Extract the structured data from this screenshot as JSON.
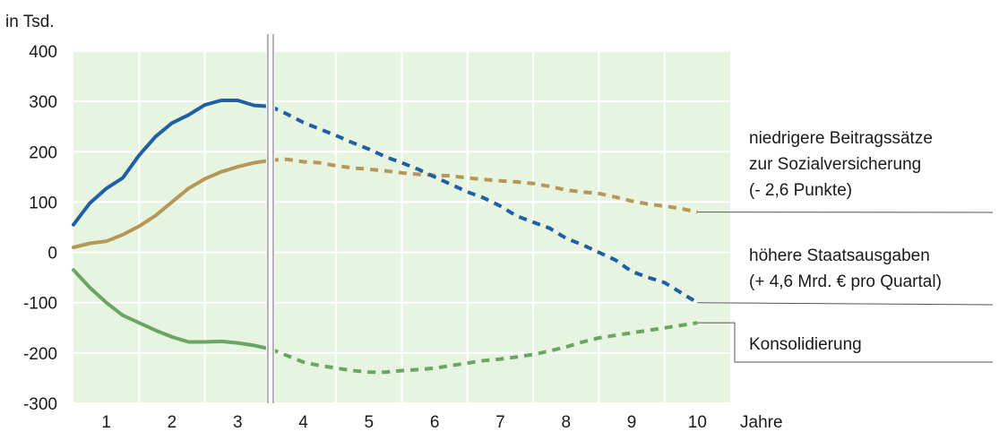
{
  "chart_data": {
    "type": "line",
    "unit_label": "in Tsd.",
    "xlabel": "Jahre",
    "ylim": [
      -300,
      400
    ],
    "xlim": [
      0.5,
      10.5
    ],
    "yticks": [
      "400",
      "300",
      "200",
      "100",
      "0",
      "-100",
      "-200",
      "-300"
    ],
    "ytick_values": [
      400,
      300,
      200,
      100,
      0,
      -100,
      -200,
      -300
    ],
    "xticks": [
      "1",
      "2",
      "3",
      "4",
      "5",
      "6",
      "7",
      "8",
      "9",
      "10"
    ],
    "xtick_values": [
      1,
      2,
      3,
      4,
      5,
      6,
      7,
      8,
      9,
      10
    ],
    "grid": true,
    "background_color": "#e6f4e0",
    "divider_x": 3.5,
    "solid_until": 3.5,
    "series": [
      {
        "name": "niedrigere Beitragssätze zur Sozialversicherung (- 2,6 Punkte)",
        "label_lines": [
          "niedrigere Beitragssätze",
          "zur Sozialversicherung",
          "(- 2,6 Punkte)"
        ],
        "color": "#b5975a",
        "x": [
          0.5,
          0.75,
          1.0,
          1.25,
          1.5,
          1.75,
          2.0,
          2.25,
          2.5,
          2.75,
          3.0,
          3.25,
          3.5,
          3.75,
          4.0,
          4.25,
          4.5,
          4.75,
          5.0,
          5.25,
          5.5,
          5.75,
          6.0,
          6.25,
          6.5,
          6.75,
          7.0,
          7.25,
          7.5,
          7.75,
          8.0,
          8.25,
          8.5,
          8.75,
          9.0,
          9.25,
          9.5,
          9.75,
          10.0
        ],
        "values": [
          10,
          18,
          22,
          35,
          52,
          73,
          100,
          127,
          146,
          160,
          170,
          178,
          183,
          185,
          180,
          178,
          172,
          168,
          165,
          162,
          158,
          155,
          153,
          152,
          148,
          145,
          142,
          140,
          137,
          131,
          124,
          120,
          117,
          110,
          102,
          96,
          92,
          87,
          80
        ],
        "end_value": 80
      },
      {
        "name": "höhere Staatsausgaben (+ 4,6 Mrd. € pro Quartal)",
        "label_lines": [
          "höhere Staatsausgaben",
          "(+ 4,6 Mrd. € pro Quartal)"
        ],
        "color": "#1f5fa6",
        "x": [
          0.5,
          0.75,
          1.0,
          1.25,
          1.5,
          1.75,
          2.0,
          2.25,
          2.5,
          2.75,
          3.0,
          3.25,
          3.5,
          3.75,
          4.0,
          4.25,
          4.5,
          4.75,
          5.0,
          5.25,
          5.5,
          5.75,
          6.0,
          6.25,
          6.5,
          6.75,
          7.0,
          7.25,
          7.5,
          7.75,
          8.0,
          8.25,
          8.5,
          8.75,
          9.0,
          9.25,
          9.5,
          9.75,
          10.0
        ],
        "values": [
          55,
          98,
          127,
          148,
          193,
          230,
          257,
          273,
          293,
          302,
          302,
          292,
          290,
          275,
          258,
          245,
          232,
          218,
          205,
          190,
          178,
          165,
          150,
          135,
          120,
          108,
          92,
          72,
          60,
          48,
          28,
          15,
          0,
          -15,
          -38,
          -50,
          -60,
          -80,
          -100
        ],
        "end_value": -100
      },
      {
        "name": "Konsolidierung",
        "label_lines": [
          "Konsolidierung"
        ],
        "color": "#6aa564",
        "x": [
          0.5,
          0.75,
          1.0,
          1.25,
          1.5,
          1.75,
          2.0,
          2.25,
          2.5,
          2.75,
          3.0,
          3.25,
          3.5,
          3.75,
          4.0,
          4.25,
          4.5,
          4.75,
          5.0,
          5.25,
          5.5,
          5.75,
          6.0,
          6.25,
          6.5,
          6.75,
          7.0,
          7.25,
          7.5,
          7.75,
          8.0,
          8.25,
          8.5,
          8.75,
          9.0,
          9.25,
          9.5,
          9.75,
          10.0
        ],
        "values": [
          -35,
          -70,
          -100,
          -125,
          -140,
          -155,
          -168,
          -178,
          -178,
          -177,
          -180,
          -185,
          -192,
          -205,
          -218,
          -225,
          -230,
          -235,
          -238,
          -238,
          -235,
          -233,
          -230,
          -225,
          -220,
          -215,
          -212,
          -208,
          -203,
          -196,
          -188,
          -178,
          -170,
          -165,
          -160,
          -155,
          -150,
          -145,
          -140
        ],
        "end_value": -140
      }
    ]
  }
}
